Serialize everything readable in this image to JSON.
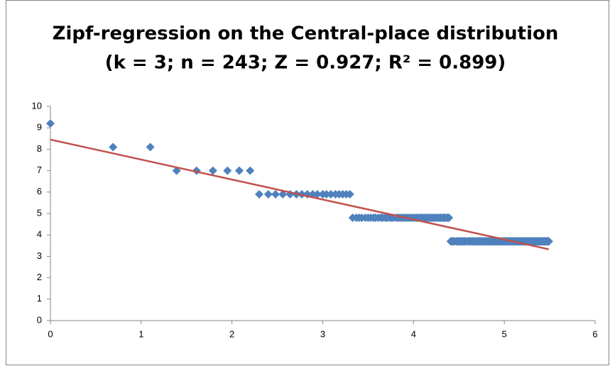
{
  "chart_data": {
    "type": "scatter",
    "title": "Zipf-regression on the Central-place distribution",
    "subtitle": "(k = 3; n = 243; Z = 0.927; R² = 0.899)",
    "xlim": [
      0,
      6
    ],
    "xticks": [
      0,
      1,
      2,
      3,
      4,
      5,
      6
    ],
    "ylim": [
      0,
      10
    ],
    "yticks": [
      0,
      1,
      2,
      3,
      4,
      5,
      6,
      7,
      8,
      9,
      10
    ],
    "grid": false,
    "series": [
      {
        "type": "scatter",
        "color": "#4f81bd",
        "x": [
          0,
          0.69,
          1.1,
          1.39,
          1.61,
          1.79,
          1.95,
          2.08,
          2.2,
          2.3,
          2.4,
          2.48,
          2.56,
          2.64,
          2.71,
          2.77,
          2.83,
          2.89,
          2.94,
          3,
          3.04,
          3.09,
          3.14,
          3.18,
          3.22,
          3.26,
          3.3,
          3.33,
          3.37,
          3.4,
          3.43,
          3.47,
          3.5,
          3.53,
          3.56,
          3.58,
          3.61,
          3.64,
          3.66,
          3.69,
          3.71,
          3.74,
          3.76,
          3.78,
          3.81,
          3.83,
          3.85,
          3.87,
          3.89,
          3.91,
          3.93,
          3.95,
          3.97,
          3.99,
          4.01,
          4.03,
          4.04,
          4.06,
          4.08,
          4.09,
          4.11,
          4.13,
          4.14,
          4.16,
          4.17,
          4.19,
          4.2,
          4.22,
          4.23,
          4.25,
          4.26,
          4.28,
          4.29,
          4.3,
          4.32,
          4.33,
          4.34,
          4.36,
          4.37,
          4.38,
          4.39,
          4.41,
          4.42,
          4.43,
          4.44,
          4.45,
          4.47,
          4.48,
          4.49,
          4.5,
          4.51,
          4.52,
          4.53,
          4.54,
          4.55,
          4.56,
          4.57,
          4.58,
          4.6,
          4.61,
          4.62,
          4.62,
          4.63,
          4.64,
          4.65,
          4.66,
          4.67,
          4.68,
          4.69,
          4.7,
          4.71,
          4.72,
          4.73,
          4.74,
          4.74,
          4.75,
          4.76,
          4.77,
          4.78,
          4.79,
          4.8,
          4.8,
          4.81,
          4.82,
          4.83,
          4.84,
          4.84,
          4.85,
          4.86,
          4.87,
          4.88,
          4.88,
          4.89,
          4.9,
          4.91,
          4.91,
          4.92,
          4.93,
          4.93,
          4.94,
          4.95,
          4.96,
          4.96,
          4.97,
          4.98,
          4.98,
          4.99,
          5,
          5,
          5.01,
          5.02,
          5.02,
          5.03,
          5.04,
          5.04,
          5.05,
          5.06,
          5.06,
          5.07,
          5.08,
          5.08,
          5.09,
          5.09,
          5.1,
          5.11,
          5.11,
          5.12,
          5.12,
          5.13,
          5.14,
          5.14,
          5.15,
          5.15,
          5.16,
          5.16,
          5.17,
          5.18,
          5.18,
          5.19,
          5.19,
          5.2,
          5.2,
          5.21,
          5.21,
          5.22,
          5.23,
          5.23,
          5.24,
          5.24,
          5.25,
          5.25,
          5.26,
          5.26,
          5.27,
          5.27,
          5.28,
          5.28,
          5.29,
          5.29,
          5.3,
          5.3,
          5.31,
          5.31,
          5.32,
          5.32,
          5.33,
          5.33,
          5.34,
          5.34,
          5.35,
          5.35,
          5.36,
          5.36,
          5.37,
          5.37,
          5.38,
          5.38,
          5.38,
          5.39,
          5.39,
          5.4,
          5.4,
          5.41,
          5.41,
          5.42,
          5.42,
          5.42,
          5.43,
          5.43,
          5.44,
          5.44,
          5.45,
          5.45,
          5.46,
          5.46,
          5.46,
          5.47,
          5.47,
          5.48,
          5.48,
          5.48,
          5.49,
          5.49
        ],
        "values": [
          9.2,
          8.1,
          8.1,
          7,
          7,
          7,
          7,
          7,
          7,
          5.9,
          5.9,
          5.9,
          5.9,
          5.9,
          5.9,
          5.9,
          5.9,
          5.9,
          5.9,
          5.9,
          5.9,
          5.9,
          5.9,
          5.9,
          5.9,
          5.9,
          5.9,
          4.8,
          4.8,
          4.8,
          4.8,
          4.8,
          4.8,
          4.8,
          4.8,
          4.8,
          4.8,
          4.8,
          4.8,
          4.8,
          4.8,
          4.8,
          4.8,
          4.8,
          4.8,
          4.8,
          4.8,
          4.8,
          4.8,
          4.8,
          4.8,
          4.8,
          4.8,
          4.8,
          4.8,
          4.8,
          4.8,
          4.8,
          4.8,
          4.8,
          4.8,
          4.8,
          4.8,
          4.8,
          4.8,
          4.8,
          4.8,
          4.8,
          4.8,
          4.8,
          4.8,
          4.8,
          4.8,
          4.8,
          4.8,
          4.8,
          4.8,
          4.8,
          4.8,
          4.8,
          4.8,
          3.7,
          3.7,
          3.7,
          3.7,
          3.7,
          3.7,
          3.7,
          3.7,
          3.7,
          3.7,
          3.7,
          3.7,
          3.7,
          3.7,
          3.7,
          3.7,
          3.7,
          3.7,
          3.7,
          3.7,
          3.7,
          3.7,
          3.7,
          3.7,
          3.7,
          3.7,
          3.7,
          3.7,
          3.7,
          3.7,
          3.7,
          3.7,
          3.7,
          3.7,
          3.7,
          3.7,
          3.7,
          3.7,
          3.7,
          3.7,
          3.7,
          3.7,
          3.7,
          3.7,
          3.7,
          3.7,
          3.7,
          3.7,
          3.7,
          3.7,
          3.7,
          3.7,
          3.7,
          3.7,
          3.7,
          3.7,
          3.7,
          3.7,
          3.7,
          3.7,
          3.7,
          3.7,
          3.7,
          3.7,
          3.7,
          3.7,
          3.7,
          3.7,
          3.7,
          3.7,
          3.7,
          3.7,
          3.7,
          3.7,
          3.7,
          3.7,
          3.7,
          3.7,
          3.7,
          3.7,
          3.7,
          3.7,
          3.7,
          3.7,
          3.7,
          3.7,
          3.7,
          3.7,
          3.7,
          3.7,
          3.7,
          3.7,
          3.7,
          3.7,
          3.7,
          3.7,
          3.7,
          3.7,
          3.7,
          3.7,
          3.7,
          3.7,
          3.7,
          3.7,
          3.7,
          3.7,
          3.7,
          3.7,
          3.7,
          3.7,
          3.7,
          3.7,
          3.7,
          3.7,
          3.7,
          3.7,
          3.7,
          3.7,
          3.7,
          3.7,
          3.7,
          3.7,
          3.7,
          3.7,
          3.7,
          3.7,
          3.7,
          3.7,
          3.7,
          3.7,
          3.7,
          3.7,
          3.7,
          3.7,
          3.7,
          3.7,
          3.7,
          3.7,
          3.7,
          3.7,
          3.7,
          3.7,
          3.7,
          3.7,
          3.7,
          3.7,
          3.7,
          3.7,
          3.7,
          3.7,
          3.7,
          3.7,
          3.7,
          3.7,
          3.7,
          3.7,
          3.7,
          3.7,
          3.7,
          3.7,
          3.7,
          3.7
        ]
      },
      {
        "type": "line",
        "color": "#c0504d",
        "x": [
          0,
          5.49
        ],
        "values": [
          8.45,
          3.33
        ]
      }
    ]
  }
}
